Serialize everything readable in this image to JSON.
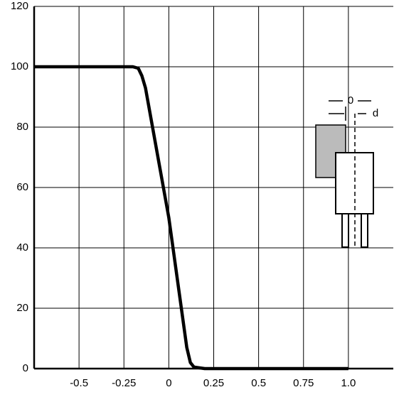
{
  "chart_data": {
    "type": "line",
    "x": [
      -0.75,
      -0.2,
      -0.17,
      -0.15,
      -0.13,
      0,
      0.1,
      0.12,
      0.14,
      0.2,
      1.0
    ],
    "series": [
      {
        "color": "#000000",
        "values": [
          100,
          100,
          99.5,
          97,
          93,
          50,
          7,
          2,
          0.5,
          0,
          0
        ]
      }
    ],
    "xlim": [
      -0.75,
      1.25
    ],
    "ylim": [
      0,
      120
    ],
    "xticks": [
      -0.5,
      -0.25,
      0,
      0.25,
      0.5,
      0.75,
      {
        "value": 1,
        "label": "1.0"
      }
    ],
    "yticks": [
      0,
      20,
      40,
      60,
      80,
      100,
      120
    ],
    "grid": true,
    "inset_labels": [
      "0",
      "d"
    ]
  }
}
